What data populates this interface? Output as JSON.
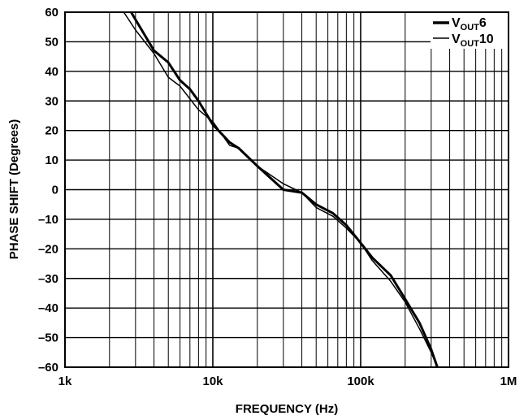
{
  "chart_data": {
    "type": "line",
    "title": "",
    "xlabel": "FREQUENCY (Hz)",
    "ylabel": "PHASE SHIFT (Degrees)",
    "x_scale": "log",
    "xlim": [
      1000,
      1000000
    ],
    "ylim": [
      -60,
      60
    ],
    "x_ticks": [
      1000,
      10000,
      100000,
      1000000
    ],
    "x_tick_labels": [
      "1k",
      "10k",
      "100k",
      "1M"
    ],
    "y_ticks": [
      60,
      50,
      40,
      30,
      20,
      10,
      0,
      -10,
      -20,
      -30,
      -40,
      -50,
      -60
    ],
    "y_tick_labels": [
      "60",
      "50",
      "40",
      "30",
      "20",
      "10",
      "0",
      "–10",
      "–20",
      "–30",
      "–40",
      "–50",
      "–60"
    ],
    "grid": true,
    "legend_position": "top-right",
    "series": [
      {
        "name": "VOUT6",
        "legend_main": "V",
        "legend_sub": "OUT",
        "legend_suffix": "6",
        "stroke": "thick",
        "x": [
          2800,
          4000,
          5000,
          6000,
          7000,
          8000,
          10000,
          13000,
          15000,
          20000,
          30000,
          40000,
          50000,
          65000,
          80000,
          100000,
          120000,
          160000,
          200000,
          250000,
          300000,
          330000
        ],
        "y": [
          60,
          47,
          43,
          37,
          34,
          30,
          22,
          16,
          14,
          8,
          0,
          -1,
          -5,
          -8,
          -12,
          -18,
          -23,
          -29,
          -37,
          -45,
          -54,
          -60
        ]
      },
      {
        "name": "VOUT10",
        "legend_main": "V",
        "legend_sub": "OUT",
        "legend_suffix": "10",
        "stroke": "thin",
        "x": [
          2500,
          3000,
          4000,
          5000,
          6000,
          8000,
          10000,
          13000,
          15000,
          20000,
          30000,
          40000,
          50000,
          65000,
          80000,
          100000,
          120000,
          160000,
          200000,
          250000,
          300000,
          330000
        ],
        "y": [
          60,
          54,
          46,
          38,
          35,
          27,
          23,
          15,
          14,
          8,
          2,
          -1,
          -6,
          -9,
          -13,
          -18,
          -24,
          -31,
          -38,
          -47,
          -55,
          -60
        ]
      }
    ]
  }
}
